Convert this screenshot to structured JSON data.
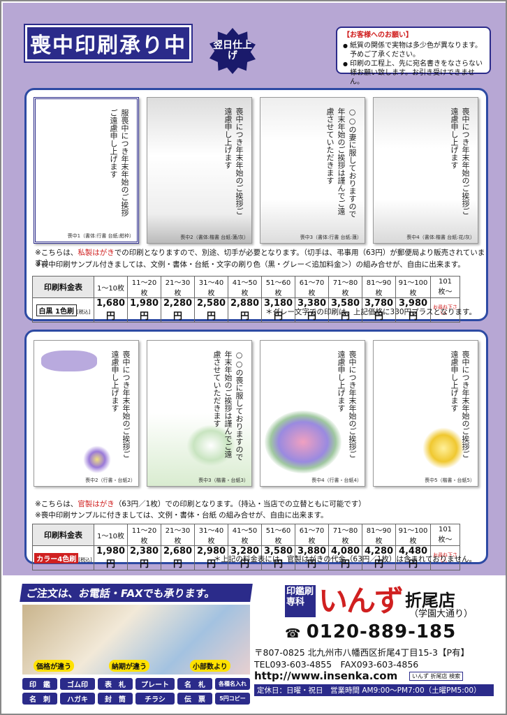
{
  "header": {
    "title": "喪中印刷承り中",
    "badge": "翌日仕上げ",
    "notice_title": "【お客様へのお願い】",
    "notice_items": [
      "紙質の関係で実物は多少色が異なります。予めご了承ください。",
      "印刷の工程上、先に宛名書きをなさらない様お願い致します。お引き受けできません。"
    ]
  },
  "section1": {
    "cards": [
      {
        "caption": "喪中1（書体:行書 台紙:紺枠）",
        "text": "服喪中につき年末年始のご挨拶ご遠慮申し上げます"
      },
      {
        "caption": "喪中2（書体:楷書 台紙:蓮/灰）",
        "text": "喪中につき年末年始のご挨拶ご遠慮申し上げます"
      },
      {
        "caption": "喪中3（書体:行書 台紙:蓮）",
        "text": "○○の妻に服しておりますので年末年始のご挨拶は謹んでご遠慮させていただきます"
      },
      {
        "caption": "喪中4（書体:楷書 台紙:花/灰）",
        "text": "喪中につき年末年始のご挨拶ご遠慮申し上げます"
      }
    ],
    "note1_pre": "※こちらは、",
    "note1_red": "私製はがき",
    "note1_post": "での印刷となりますので、別途、切手が必要となります。（切手は、弔事用（63円）が郵便局より販売されています。）",
    "note2": "※喪中印刷サンプル付きましては、文例・書体・台紙・文字の刷り色（黒・グレー＜追加料金＞）の組み合せが、自由に出来ます。",
    "price_label": "印刷料金表",
    "type_label": "白黒 1色刷",
    "tax": "[税込]",
    "ranges": [
      "1〜10枚",
      "11〜20枚",
      "21〜30枚",
      "31〜40枚",
      "41〜50枚",
      "51〜60枚",
      "61〜70枚",
      "71〜80枚",
      "81〜90枚",
      "91〜100枚",
      "101枚〜"
    ],
    "prices": [
      "1,680円",
      "1,980円",
      "2,280円",
      "2,580円",
      "2,880円",
      "3,180円",
      "3,380円",
      "3,580円",
      "3,780円",
      "3,980円",
      "お尋ね下さい。"
    ],
    "sub": "＊グレー文字での印刷は、上記価格に330円プラスとなります。"
  },
  "section2": {
    "cards": [
      {
        "caption": "喪中2（行書・台紙2）",
        "text": "喪中につき年末年始のご挨拶ご遠慮申し上げます"
      },
      {
        "caption": "喪中3（楷書・台紙3）",
        "text": "○○の喪に服しておりますので年末年始のご挨拶は謹んでご遠慮させていただきます"
      },
      {
        "caption": "喪中4（行書・台紙4）",
        "text": "喪中につき年末年始のご挨拶ご遠慮申し上げます"
      },
      {
        "caption": "喪中5（楷書・台紙5）",
        "text": "喪中につき年末年始のご挨拶ご遠慮申し上げます"
      }
    ],
    "note1_pre": "※こちらは、",
    "note1_red": "官製はがき",
    "note1_post": "（63円／1枚）での印刷となります。（持込・当店での立替ともに可能です）",
    "note2": "※喪中印刷サンプルに付きましては、文例・書体・台紙 の組み合せが、自由に出来ます。",
    "price_label": "印刷料金表",
    "type_label": "カラー4色刷",
    "tax": "[税込]",
    "ranges": [
      "1〜10枚",
      "11〜20枚",
      "21〜30枚",
      "31〜40枚",
      "41〜50枚",
      "51〜60枚",
      "61〜70枚",
      "71〜80枚",
      "81〜90枚",
      "91〜100枚",
      "101枚〜"
    ],
    "prices": [
      "1,980円",
      "2,380円",
      "2,680円",
      "2,980円",
      "3,280円",
      "3,580円",
      "3,880円",
      "4,080円",
      "4,280円",
      "4,480円",
      "お尋ね下さい。"
    ],
    "sub": "＊上記の料金表には、官製はがきの代金（63円／1枚）は含まれておりません。"
  },
  "footer": {
    "order": "ご注文は、お電話・FAXでも承ります。",
    "photo_tags": [
      "価格が違う",
      "納期が違う",
      "小部数より"
    ],
    "services_row1": [
      "印　鑑",
      "ゴム印",
      "表　札",
      "プレート",
      "名　札",
      "各種名入れ"
    ],
    "services_row2": [
      "名　刺",
      "ハガキ",
      "封　筒",
      "チラシ",
      "伝　票",
      "5円コピー"
    ],
    "logo_box": "印鑑刷専科",
    "logo": "いんず",
    "shop": "折尾店",
    "shop_sub": "（学園大通り）",
    "freedial": "0120-889-185",
    "address": "〒807-0825 北九州市八幡西区折尾4丁目15-3【P有】",
    "tel_fax": "TEL093-603-4855　FAX093-603-4856",
    "url": "http://www.insenka.com",
    "search": "いんず 折尾店 検索",
    "hours": "定休日：日曜・祝日　営業時間 AM9:00〜PM7:00（土曜PM5:00）"
  }
}
